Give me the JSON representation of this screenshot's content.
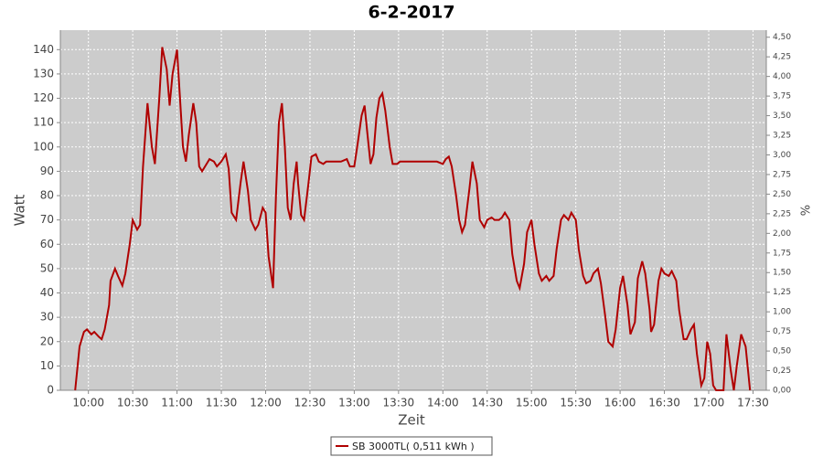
{
  "chart_data": {
    "type": "line",
    "title": "6-2-2017",
    "x_label": "Zeit",
    "y_label": "Watt",
    "y2_label": "%",
    "x": [
      "09:51",
      "09:54",
      "09:57",
      "09:59",
      "10:02",
      "10:04",
      "10:07",
      "10:09",
      "10:11",
      "10:14",
      "10:15",
      "10:18",
      "10:20",
      "10:23",
      "10:25",
      "10:28",
      "10:30",
      "10:33",
      "10:35",
      "10:37",
      "10:40",
      "10:43",
      "10:45",
      "10:48",
      "10:50",
      "10:53",
      "10:55",
      "10:57",
      "11:00",
      "11:01",
      "11:04",
      "11:06",
      "11:08",
      "11:11",
      "11:13",
      "11:15",
      "11:17",
      "11:20",
      "11:22",
      "11:25",
      "11:27",
      "11:30",
      "11:33",
      "11:35",
      "11:37",
      "11:40",
      "11:43",
      "11:45",
      "11:48",
      "11:50",
      "11:53",
      "11:55",
      "11:58",
      "12:00",
      "12:02",
      "12:05",
      "12:07",
      "12:09",
      "12:11",
      "12:13",
      "12:15",
      "12:17",
      "12:19",
      "12:21",
      "12:22",
      "12:24",
      "12:26",
      "12:29",
      "12:31",
      "12:34",
      "12:36",
      "12:39",
      "12:41",
      "12:46",
      "12:51",
      "12:55",
      "12:57",
      "13:00",
      "13:02",
      "13:05",
      "13:07",
      "13:09",
      "13:11",
      "13:13",
      "13:15",
      "13:17",
      "13:19",
      "13:21",
      "13:24",
      "13:26",
      "13:29",
      "13:31",
      "13:36",
      "13:45",
      "13:51",
      "13:56",
      "14:00",
      "14:02",
      "14:04",
      "14:06",
      "14:09",
      "14:11",
      "14:13",
      "14:15",
      "14:18",
      "14:20",
      "14:23",
      "14:25",
      "14:28",
      "14:30",
      "14:33",
      "14:35",
      "14:38",
      "14:40",
      "14:42",
      "14:45",
      "14:47",
      "14:50",
      "14:52",
      "14:55",
      "14:57",
      "15:00",
      "15:02",
      "15:05",
      "15:07",
      "15:10",
      "15:12",
      "15:15",
      "15:17",
      "15:20",
      "15:22",
      "15:25",
      "15:27",
      "15:30",
      "15:32",
      "15:35",
      "15:37",
      "15:40",
      "15:42",
      "15:45",
      "15:47",
      "15:50",
      "15:52",
      "15:55",
      "15:57",
      "16:00",
      "16:02",
      "16:05",
      "16:07",
      "16:10",
      "16:12",
      "16:15",
      "16:17",
      "16:20",
      "16:21",
      "16:23",
      "16:26",
      "16:28",
      "16:30",
      "16:33",
      "16:35",
      "16:38",
      "16:40",
      "16:43",
      "16:45",
      "16:48",
      "16:50",
      "16:52",
      "16:55",
      "16:57",
      "16:59",
      "17:01",
      "17:03",
      "17:05",
      "17:10",
      "17:12",
      "17:15",
      "17:17",
      "17:19",
      "17:22",
      "17:25",
      "17:28"
    ],
    "series": [
      {
        "name": "SB 3000TL( 0,511 kWh )",
        "color": "#b00000",
        "values": [
          0,
          18,
          24,
          25,
          23,
          24,
          22,
          21,
          25,
          35,
          45,
          50,
          47,
          43,
          48,
          60,
          70,
          66,
          68,
          92,
          118,
          100,
          93,
          120,
          141,
          132,
          117,
          130,
          140,
          130,
          100,
          94,
          105,
          118,
          110,
          92,
          90,
          93,
          95,
          94,
          92,
          94,
          97,
          91,
          73,
          70,
          85,
          94,
          82,
          70,
          66,
          68,
          75,
          73,
          55,
          42,
          80,
          110,
          118,
          100,
          75,
          70,
          85,
          94,
          85,
          72,
          70,
          85,
          96,
          97,
          94,
          93,
          94,
          94,
          94,
          95,
          92,
          92,
          100,
          113,
          117,
          105,
          93,
          97,
          112,
          120,
          122,
          115,
          100,
          93,
          93,
          94,
          94,
          94,
          94,
          94,
          93,
          95,
          96,
          92,
          80,
          70,
          65,
          68,
          83,
          94,
          85,
          70,
          67,
          70,
          71,
          70,
          70,
          71,
          73,
          70,
          56,
          45,
          42,
          52,
          65,
          70,
          60,
          48,
          45,
          47,
          45,
          47,
          58,
          70,
          72,
          70,
          73,
          70,
          58,
          47,
          44,
          45,
          48,
          50,
          44,
          30,
          20,
          18,
          25,
          42,
          47,
          35,
          23,
          28,
          46,
          53,
          48,
          33,
          24,
          27,
          45,
          50,
          48,
          47,
          49,
          45,
          33,
          21,
          21,
          25,
          27,
          15,
          2,
          5,
          20,
          15,
          2,
          0,
          0,
          23,
          8,
          0,
          10,
          23,
          18,
          0
        ]
      }
    ],
    "xlim": [
      "09:41",
      "17:39"
    ],
    "xticks": [
      "10:00",
      "10:30",
      "11:00",
      "11:30",
      "12:00",
      "12:30",
      "13:00",
      "13:30",
      "14:00",
      "14:30",
      "15:00",
      "15:30",
      "16:00",
      "16:30",
      "17:00",
      "17:30"
    ],
    "ylim": [
      0,
      148
    ],
    "yticks": [
      0,
      10,
      20,
      30,
      40,
      50,
      60,
      70,
      80,
      90,
      100,
      110,
      120,
      130,
      140
    ],
    "y2lim": [
      0,
      4.59
    ],
    "y2ticks": [
      {
        "value": 0,
        "label": "0,00"
      },
      {
        "value": 0.25,
        "label": "0,25"
      },
      {
        "value": 0.5,
        "label": "0,50"
      },
      {
        "value": 0.75,
        "label": "0,75"
      },
      {
        "value": 1,
        "label": "1,00"
      },
      {
        "value": 1.25,
        "label": "1,25"
      },
      {
        "value": 1.5,
        "label": "1,50"
      },
      {
        "value": 1.75,
        "label": "1,75"
      },
      {
        "value": 2,
        "label": "2,00"
      },
      {
        "value": 2.25,
        "label": "2,25"
      },
      {
        "value": 2.5,
        "label": "2,50"
      },
      {
        "value": 2.75,
        "label": "2,75"
      },
      {
        "value": 3,
        "label": "3,00"
      },
      {
        "value": 3.25,
        "label": "3,25"
      },
      {
        "value": 3.5,
        "label": "3,50"
      },
      {
        "value": 3.75,
        "label": "3,75"
      },
      {
        "value": 4,
        "label": "4,00"
      },
      {
        "value": 4.25,
        "label": "4,25"
      },
      {
        "value": 4.5,
        "label": "4,50"
      }
    ],
    "grid": true,
    "background": "#cccccc"
  }
}
